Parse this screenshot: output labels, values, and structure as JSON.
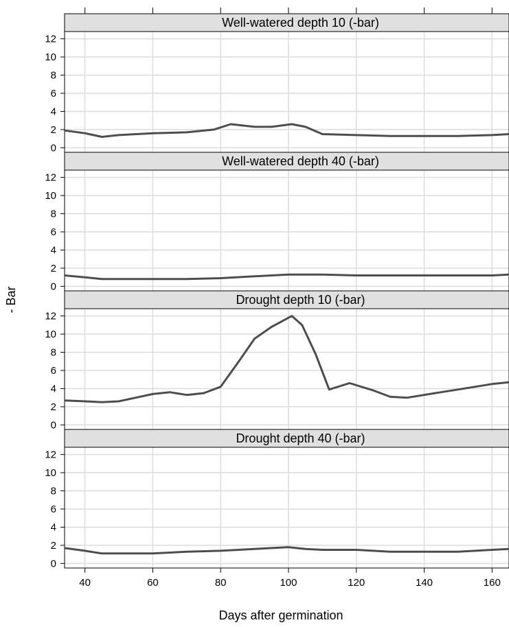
{
  "chart_data": {
    "type": "line",
    "layout": "lattice-vertical-4-panels",
    "xlabel": "Days after germination",
    "ylabel": "- Bar",
    "xlim": [
      34,
      165
    ],
    "ylim": [
      -0.5,
      12.8
    ],
    "x_ticks": [
      40,
      60,
      80,
      100,
      120,
      140,
      160
    ],
    "y_ticks": [
      0,
      2,
      4,
      6,
      8,
      10,
      12
    ],
    "grid": true,
    "line_color": "#4d4d4d",
    "strip_color": "#e0e0e0",
    "grid_color": "#dcdcdc",
    "panels": [
      {
        "title": "Well-watered depth 10 (-bar)",
        "x": [
          34,
          40,
          45,
          50,
          60,
          70,
          78,
          83,
          90,
          95,
          101,
          105,
          110,
          120,
          130,
          140,
          150,
          160,
          165
        ],
        "y": [
          1.9,
          1.6,
          1.2,
          1.4,
          1.6,
          1.7,
          2.0,
          2.6,
          2.3,
          2.3,
          2.6,
          2.3,
          1.5,
          1.4,
          1.3,
          1.3,
          1.3,
          1.4,
          1.5
        ]
      },
      {
        "title": "Well-watered depth 40 (-bar)",
        "x": [
          34,
          40,
          45,
          50,
          60,
          70,
          80,
          90,
          100,
          110,
          120,
          130,
          140,
          150,
          160,
          165
        ],
        "y": [
          1.2,
          1.0,
          0.8,
          0.8,
          0.8,
          0.8,
          0.9,
          1.1,
          1.3,
          1.3,
          1.2,
          1.2,
          1.2,
          1.2,
          1.2,
          1.3
        ]
      },
      {
        "title": "Drought depth 10 (-bar)",
        "x": [
          34,
          40,
          45,
          50,
          55,
          60,
          65,
          70,
          75,
          80,
          85,
          90,
          95,
          101,
          104,
          108,
          112,
          118,
          125,
          130,
          135,
          140,
          145,
          150,
          155,
          160,
          165
        ],
        "y": [
          2.7,
          2.6,
          2.5,
          2.6,
          3.0,
          3.4,
          3.6,
          3.3,
          3.5,
          4.2,
          6.8,
          9.5,
          10.8,
          12.0,
          11.0,
          7.8,
          3.9,
          4.6,
          3.8,
          3.1,
          3.0,
          3.3,
          3.6,
          3.9,
          4.2,
          4.5,
          4.7
        ]
      },
      {
        "title": "Drought depth 40 (-bar)",
        "x": [
          34,
          40,
          45,
          50,
          60,
          70,
          80,
          90,
          100,
          105,
          110,
          120,
          130,
          140,
          150,
          160,
          165
        ],
        "y": [
          1.7,
          1.4,
          1.1,
          1.1,
          1.1,
          1.3,
          1.4,
          1.6,
          1.8,
          1.6,
          1.5,
          1.5,
          1.3,
          1.3,
          1.3,
          1.5,
          1.6
        ]
      }
    ]
  }
}
